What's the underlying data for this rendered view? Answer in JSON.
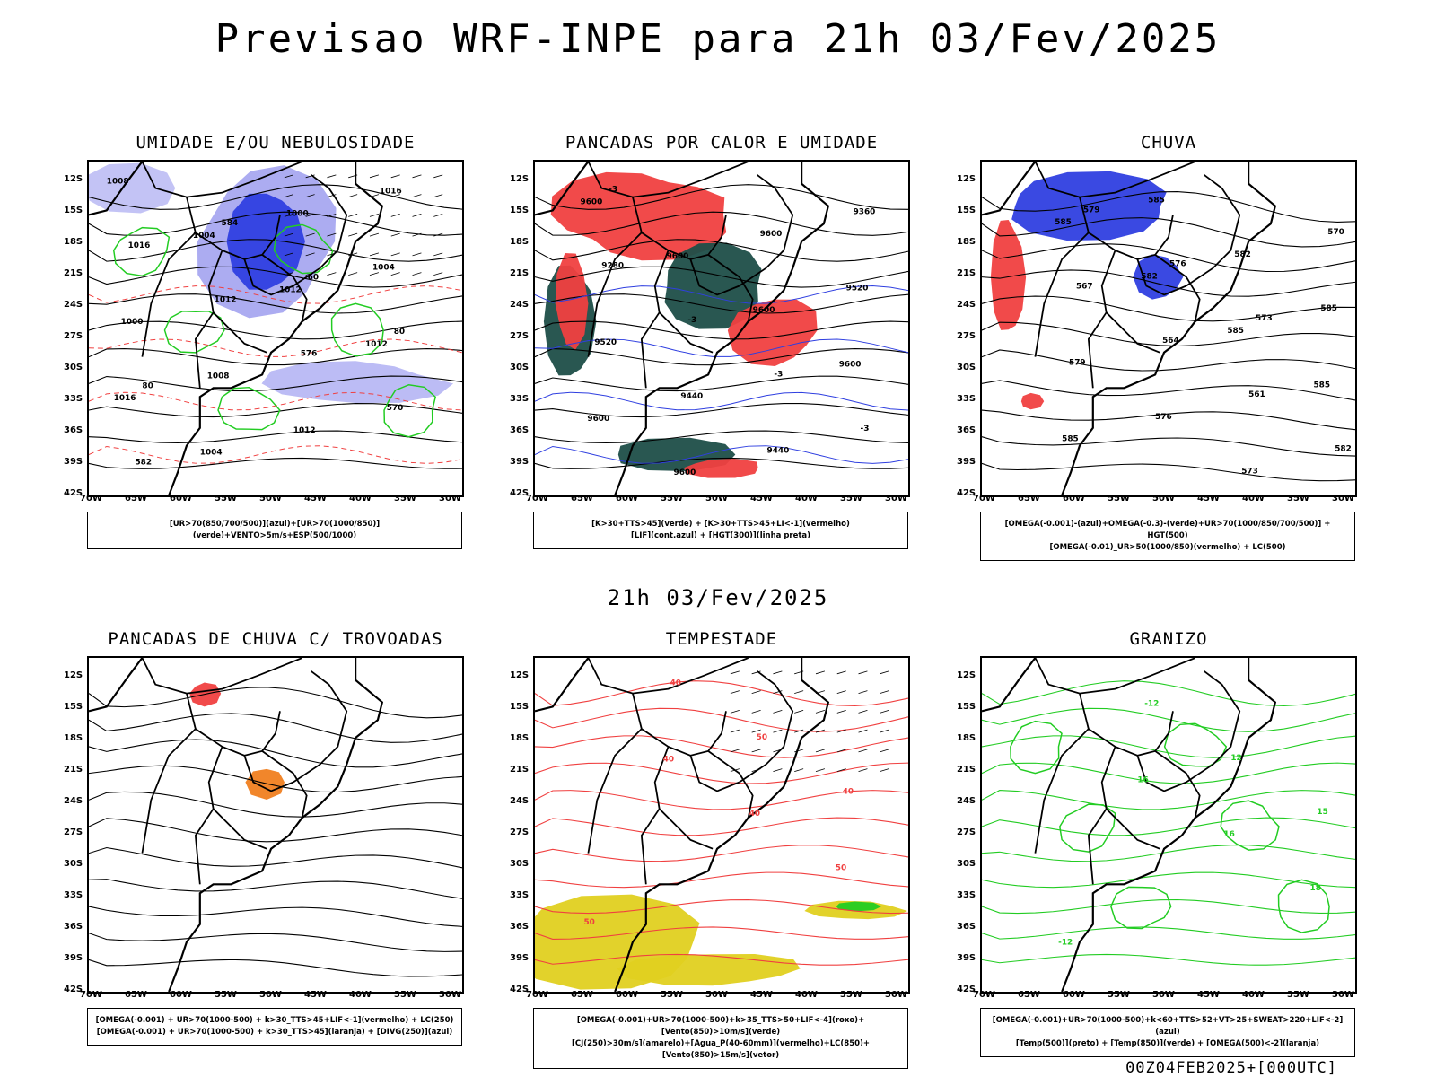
{
  "title": "Previsao WRF-INPE  para 21h 03/Fev/2025",
  "mid_title": "21h 03/Fev/2025",
  "footer": "00Z04FEB2025+[000UTC]",
  "axes": {
    "lat_labels": [
      "12S",
      "15S",
      "18S",
      "21S",
      "24S",
      "27S",
      "30S",
      "33S",
      "36S",
      "39S",
      "42S"
    ],
    "lon_labels": [
      "70W",
      "65W",
      "60W",
      "55W",
      "50W",
      "45W",
      "40W",
      "35W",
      "30W"
    ]
  },
  "colors": {
    "blue": "#2f3fe0",
    "green": "#22cc22",
    "red": "#f04040",
    "darkgreen": "#1e4e48",
    "yellow": "#e0d020",
    "orange": "#f08020"
  },
  "chart_data": [
    {
      "type": "map",
      "title": "UMIDADE E/OU NEBULOSIDADE",
      "legend": [
        "[UR>70(850/700/500)](azul)+[UR>70(1000/850)](verde)+VENTO>5m/s+ESP(500/1000)"
      ],
      "contour_labels": [
        "1008",
        "1004",
        "1012",
        "1012",
        "1016",
        "1004",
        "1000",
        "1004",
        "1000",
        "1008",
        "1012",
        "1016",
        "1016",
        "1012",
        "576",
        "570",
        "582",
        "584",
        "60",
        "80",
        "80"
      ]
    },
    {
      "type": "map",
      "title": "PANCADAS POR CALOR E UMIDADE",
      "legend": [
        "[K>30+TTS>45](verde) + [K>30+TTS>45+LI<-1](vermelho)",
        "[LIF](cont.azul) + [HGT(300)](linha preta)"
      ],
      "contour_labels": [
        "9600",
        "9600",
        "9600",
        "9600",
        "9600",
        "9600",
        "9600",
        "9520",
        "9520",
        "9440",
        "9440",
        "9360",
        "9280",
        "-3",
        "-3",
        "-3",
        "-3"
      ]
    },
    {
      "type": "map",
      "title": "CHUVA",
      "legend": [
        "[OMEGA(-0.001)-(azul)+OMEGA(-0.3)-(verde)+UR>70(1000/850/700/500)] + HGT(500)",
        "[OMEGA(-0.01)_UR>50(1000/850)(vermelho) + LC(500)"
      ],
      "contour_labels": [
        "585",
        "582",
        "585",
        "585",
        "585",
        "585",
        "582",
        "585",
        "579",
        "576",
        "573",
        "570",
        "567",
        "564",
        "561",
        "582",
        "579",
        "576",
        "573"
      ]
    },
    {
      "type": "map",
      "title": "PANCADAS DE CHUVA C/ TROVOADAS",
      "legend": [
        "[OMEGA(-0.001) + UR>70(1000-500) + k>30_TTS>45+LIF<-1](vermelho) + LC(250)",
        "[OMEGA(-0.001) + UR>70(1000-500) + k>30_TTS>45](laranja) + [DIVG(250)](azul)"
      ],
      "contour_labels": []
    },
    {
      "type": "map",
      "title": "TEMPESTADE",
      "legend": [
        "[OMEGA(-0.001)+UR>70(1000-500)+k>35_TTS>50+LIF<-4](roxo)+[Vento(850)>10m/s](verde)",
        "[CJ(250)>30m/s](amarelo)+[Agua_P(40-60mm)](vermelho)+LC(850)+[Vento(850)>15m/s](vetor)"
      ],
      "contour_labels": [
        "40",
        "40",
        "50",
        "50",
        "40",
        "50",
        "40"
      ]
    },
    {
      "type": "map",
      "title": "GRANIZO",
      "legend": [
        "[OMEGA(-0.001)+UR>70(1000-500)+k<60+TTS>52+VT>25+SWEAT>220+LIF<-2](azul)",
        "[Temp(500)](preto) + [Temp(850)](verde) + [OMEGA(500)<-2](laranja)"
      ],
      "contour_labels": [
        "16",
        "16",
        "18",
        "-12",
        "-12",
        "12",
        "15"
      ]
    }
  ]
}
